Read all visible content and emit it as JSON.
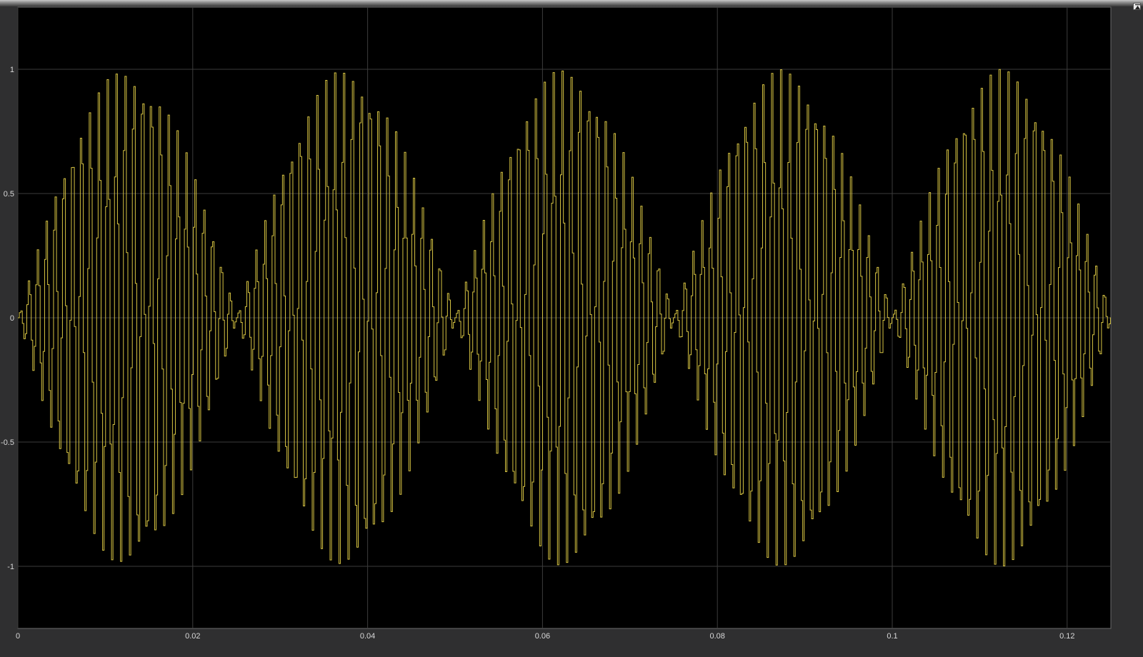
{
  "toolbar": {
    "undock_icon": "undock-arrow-icon"
  },
  "colors": {
    "background": "#000000",
    "frame": "#2f2f30",
    "grid": "#3c3c3c",
    "signal": "#d6c342",
    "tick_text": "#d8d8d8"
  },
  "chart_data": {
    "type": "line",
    "title": "",
    "xlabel": "",
    "ylabel": "",
    "xlim": [
      0,
      0.125
    ],
    "ylim": [
      -1.25,
      1.25
    ],
    "grid": true,
    "legend": "none",
    "x_ticks": [
      0,
      0.02,
      0.04,
      0.06,
      0.08,
      0.1,
      0.12
    ],
    "x_tick_labels": [
      "0",
      "0.02",
      "0.04",
      "0.06",
      "0.08",
      "0.1",
      "0.12"
    ],
    "y_ticks": [
      1,
      0.5,
      0,
      -0.5,
      -1
    ],
    "y_tick_labels": [
      "1",
      "0.5",
      "0",
      "-0.5",
      "-1"
    ],
    "series": [
      {
        "color": "#d6c342",
        "interpolation": "stairs",
        "description_of_signal": "amplitude-modulated carrier",
        "envelope_function": "|sin(2*pi*20*t)|",
        "envelope_frequency_hz": 20,
        "envelope_peak": 1,
        "carrier_frequency_hz": 1000,
        "sample_time": 0.00017,
        "t_start": 0,
        "t_end": 0.125
      }
    ]
  }
}
